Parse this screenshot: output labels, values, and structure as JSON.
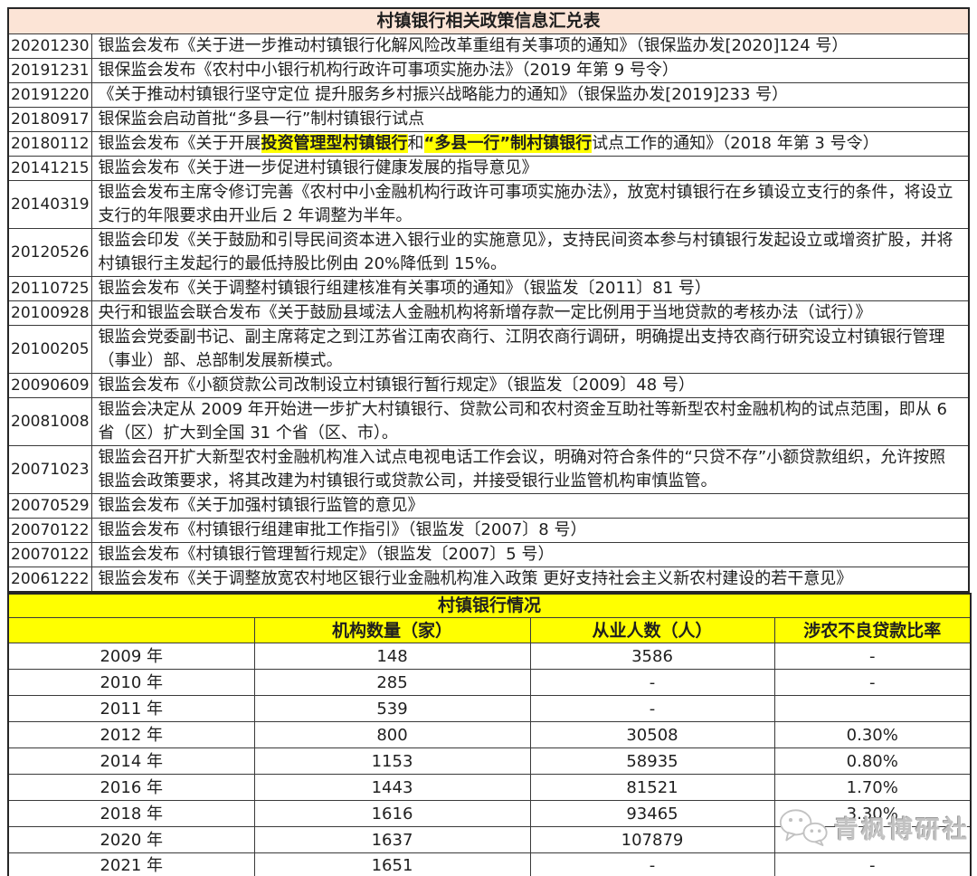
{
  "page_title": "村镇银行相关政策信息汇兑表",
  "policy_table": {
    "rows": [
      {
        "date": "20201230",
        "text": "银监会发布《关于进一步推动村镇银行化解风险改革重组有关事项的通知》（银保监办发[2020]124 号）"
      },
      {
        "date": "20191231",
        "text": "银保监会发布《农村中小银行机构行政许可事项实施办法》（2019 年第 9 号令）"
      },
      {
        "date": "20191220",
        "text": "《关于推动村镇银行坚守定位 提升服务乡村振兴战略能力的通知》（银保监办发[2019]233 号）"
      },
      {
        "date": "20180917",
        "text": "银保监会启动首批“多县一行”制村镇银行试点"
      },
      {
        "date": "20180112",
        "segments": [
          {
            "text": "银监会发布《关于开展",
            "highlight": false
          },
          {
            "text": "投资管理型村镇银行",
            "highlight": true
          },
          {
            "text": "和",
            "highlight": false
          },
          {
            "text": "“多县一行”制村镇银行",
            "highlight": true
          },
          {
            "text": "试点工作的通知》（2018 年第 3 号令）",
            "highlight": false
          }
        ]
      },
      {
        "date": "20141215",
        "text": "银监会发布《关于进一步促进村镇银行健康发展的指导意见》"
      },
      {
        "date": "20140319",
        "text": "银监会发布主席令修订完善《农村中小金融机构行政许可事项实施办法》，放宽村镇银行在乡镇设立支行的条件，将设立支行的年限要求由开业后 2 年调整为半年。"
      },
      {
        "date": "20120526",
        "text": "银监会印发《关于鼓励和引导民间资本进入银行业的实施意见》，支持民间资本参与村镇银行发起设立或增资扩股，并将村镇银行主发起行的最低持股比例由 20%降低到 15%。"
      },
      {
        "date": "20110725",
        "text": "银监会发布《关于调整村镇银行组建核准有关事项的通知》（银监发〔2011〕81 号）"
      },
      {
        "date": "20100928",
        "text": "央行和银监会联合发布《关于鼓励县域法人金融机构将新增存款一定比例用于当地贷款的考核办法（试行）》"
      },
      {
        "date": "20100205",
        "text": "银监会党委副书记、副主席蒋定之到江苏省江南农商行、江阴农商行调研，明确提出支持农商行研究设立村镇银行管理（事业）部、总部制发展新模式。"
      },
      {
        "date": "20090609",
        "text": "银监会发布《小额贷款公司改制设立村镇银行暂行规定》（银监发〔2009〕48 号）"
      },
      {
        "date": "20081008",
        "text": "银监会决定从 2009 年开始进一步扩大村镇银行、贷款公司和农村资金互助社等新型农村金融机构的试点范围，即从 6 省（区）扩大到全国 31 个省（区、市）。"
      },
      {
        "date": "20071023",
        "text": "银监会召开扩大新型农村金融机构准入试点电视电话工作会议，明确对符合条件的“只贷不存”小额贷款组织，允许按照银监会政策要求，将其改建为村镇银行或贷款公司，并接受银行业监管机构审慎监管。"
      },
      {
        "date": "20070529",
        "text": "银监会发布《关于加强村镇银行监管的意见》"
      },
      {
        "date": "20070122",
        "text": "银监会发布《村镇银行组建审批工作指引》（银监发〔2007〕8 号）"
      },
      {
        "date": "20070122",
        "text": "银监会发布《村镇银行管理暂行规定》（银监发〔2007〕5 号）"
      },
      {
        "date": "20061222",
        "text": "银监会发布《关于调整放宽农村地区银行业金融机构准入政策 更好支持社会主义新农村建设的若干意见》"
      }
    ]
  },
  "situation_table": {
    "title": "村镇银行情况",
    "headers": [
      "",
      "机构数量（家）",
      "从业人数（人）",
      "涉农不良贷款比率"
    ],
    "rows": [
      {
        "year": "2009 年",
        "values": [
          "148",
          "3586",
          "-"
        ]
      },
      {
        "year": "2010 年",
        "values": [
          "285",
          "-",
          "-"
        ]
      },
      {
        "year": "2011 年",
        "values": [
          "539",
          "-",
          ""
        ]
      },
      {
        "year": "2012 年",
        "values": [
          "800",
          "30508",
          "0.30%"
        ]
      },
      {
        "year": "2014 年",
        "values": [
          "1153",
          "58935",
          "0.80%"
        ]
      },
      {
        "year": "2016 年",
        "values": [
          "1443",
          "81521",
          "1.70%"
        ]
      },
      {
        "year": "2018 年",
        "values": [
          "1616",
          "93465",
          "3.30%"
        ]
      },
      {
        "year": "2020 年",
        "values": [
          "1637",
          "107879",
          ""
        ]
      },
      {
        "year": "2021 年",
        "values": [
          "1651",
          "-",
          "-"
        ]
      }
    ]
  },
  "watermark": {
    "icon": "wechat-icon",
    "text": "青枫博研社"
  },
  "colors": {
    "title_bg": "#fce4d6",
    "highlight": "#ffff00",
    "section_bg": "#ffff00",
    "border": "#3a3a3a",
    "text": "#1f1f1f",
    "watermark": "#c2c2c2"
  }
}
